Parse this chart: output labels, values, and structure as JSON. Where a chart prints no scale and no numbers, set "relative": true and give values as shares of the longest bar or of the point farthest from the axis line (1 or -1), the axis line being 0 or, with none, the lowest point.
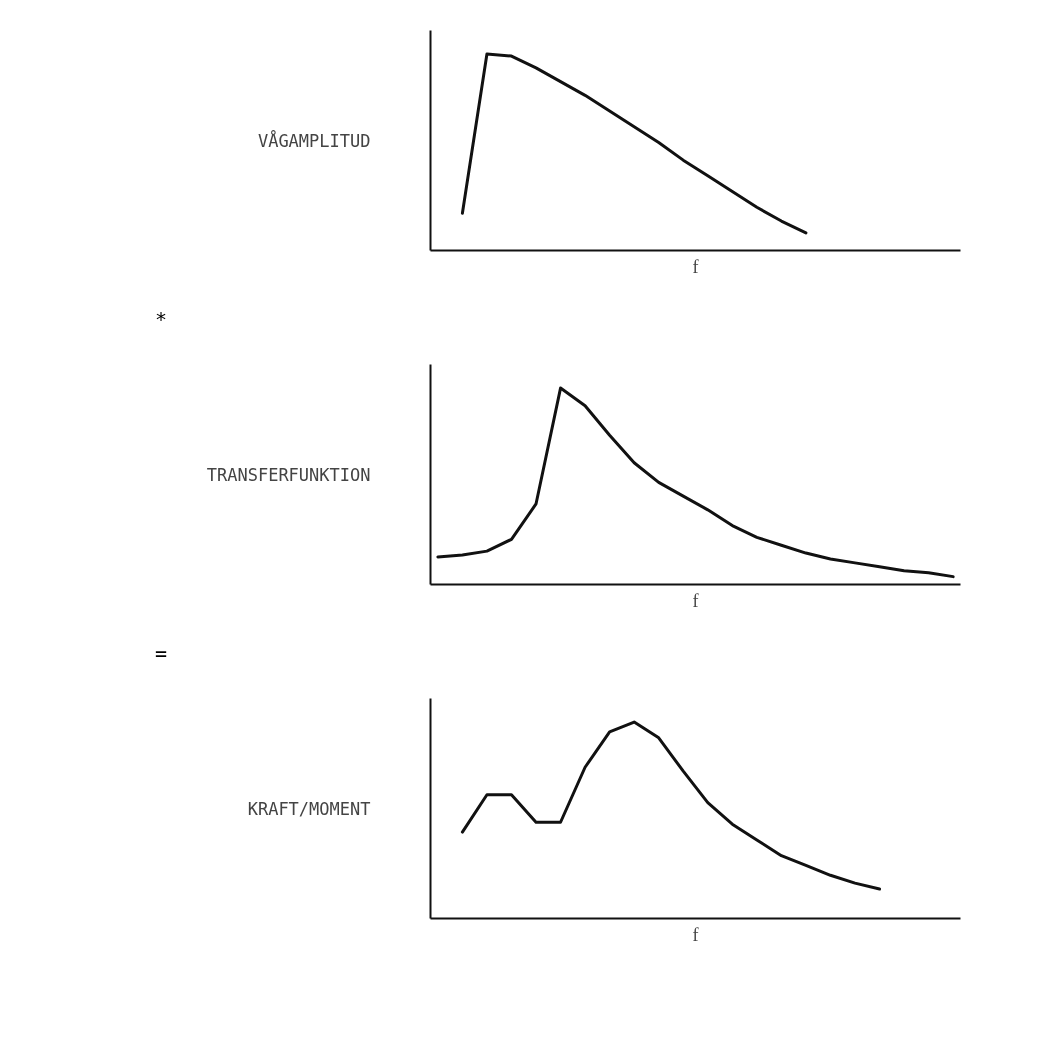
{
  "chart_data": [
    {
      "type": "line",
      "ylabel": "VÅGAMPLITUD",
      "xlabel": "f",
      "relative": true,
      "color": "#111111",
      "annotations": [
        "*"
      ],
      "categories": [
        null,
        null,
        null,
        null,
        null,
        null,
        null,
        null,
        null,
        null,
        null,
        null,
        null,
        null,
        null,
        null,
        null,
        null,
        null,
        null,
        null,
        null
      ],
      "values": [
        null,
        0.19,
        1.0,
        0.99,
        0.93,
        0.86,
        0.79,
        0.71,
        0.63,
        0.55,
        0.46,
        0.38,
        0.3,
        0.22,
        0.15,
        0.09,
        null,
        null,
        null,
        null,
        null,
        null
      ]
    },
    {
      "type": "line",
      "ylabel": "TRANSFERFUNKTION",
      "xlabel": "f",
      "relative": true,
      "color": "#111111",
      "annotations": [
        "="
      ],
      "categories": [
        null,
        null,
        null,
        null,
        null,
        null,
        null,
        null,
        null,
        null,
        null,
        null,
        null,
        null,
        null,
        null,
        null,
        null,
        null,
        null,
        null,
        null
      ],
      "values": [
        0.14,
        0.15,
        0.17,
        0.23,
        0.41,
        1.0,
        0.91,
        0.76,
        0.62,
        0.52,
        0.45,
        0.38,
        0.3,
        0.24,
        0.2,
        0.16,
        0.13,
        0.11,
        0.09,
        0.07,
        0.06,
        0.04
      ]
    },
    {
      "type": "line",
      "ylabel": "KRAFT/MOMENT",
      "xlabel": "f",
      "relative": true,
      "color": "#111111",
      "categories": [
        null,
        null,
        null,
        null,
        null,
        null,
        null,
        null,
        null,
        null,
        null,
        null,
        null,
        null,
        null,
        null,
        null,
        null,
        null,
        null,
        null,
        null
      ],
      "values": [
        null,
        0.44,
        0.63,
        0.63,
        0.49,
        0.49,
        0.77,
        0.95,
        1.0,
        0.92,
        0.75,
        0.59,
        0.48,
        0.4,
        0.32,
        0.27,
        0.22,
        0.18,
        0.15,
        null,
        null,
        null
      ]
    }
  ]
}
